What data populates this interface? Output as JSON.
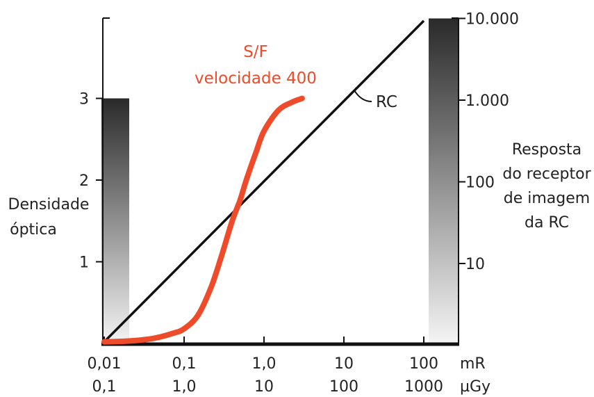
{
  "chart_data": {
    "type": "line",
    "title": "",
    "x_axis": {
      "scale": "log",
      "range_mR": [
        0.01,
        200
      ],
      "ticks_mR": [
        0.01,
        0.1,
        1,
        10,
        100
      ],
      "tick_labels_mR": [
        "0,01",
        "0,1",
        "1,0",
        "10",
        "100"
      ],
      "tick_labels_uGy": [
        "0,1",
        "1,0",
        "10",
        "100",
        "1000"
      ],
      "unit_mR": "mR",
      "unit_uGy": "µGy"
    },
    "y_left": {
      "label_lines": [
        "Densidade",
        "óptica"
      ],
      "range": [
        0,
        4
      ],
      "ticks": [
        1,
        2,
        3
      ],
      "tick_labels": [
        "1",
        "2",
        "3"
      ]
    },
    "y_right": {
      "label_lines": [
        "Resposta",
        "do receptor",
        "de imagem",
        "da RC"
      ],
      "scale": "log",
      "ticks": [
        10,
        100,
        1000,
        10000
      ],
      "tick_labels": [
        "10",
        "100",
        "1.000",
        "10.000"
      ]
    },
    "series": [
      {
        "name": "S/F velocidade 400",
        "label_lines": [
          "S/F",
          "velocidade 400"
        ],
        "color": "#ee4b2b",
        "points": [
          [
            0.01,
            0.02
          ],
          [
            0.02,
            0.03
          ],
          [
            0.04,
            0.06
          ],
          [
            0.07,
            0.12
          ],
          [
            0.1,
            0.18
          ],
          [
            0.15,
            0.35
          ],
          [
            0.22,
            0.7
          ],
          [
            0.3,
            1.1
          ],
          [
            0.4,
            1.5
          ],
          [
            0.5,
            1.75
          ],
          [
            0.6,
            2.0
          ],
          [
            0.8,
            2.35
          ],
          [
            1.0,
            2.6
          ],
          [
            1.5,
            2.85
          ],
          [
            2.2,
            2.95
          ],
          [
            3.0,
            3.0
          ]
        ]
      },
      {
        "name": "RC",
        "label": "RC",
        "color": "#111111",
        "points": [
          [
            0.01,
            0.02
          ],
          [
            100,
            3.95
          ]
        ]
      }
    ],
    "gradient_bars": [
      {
        "side": "left",
        "top_value": 3
      },
      {
        "side": "right",
        "top_value": 10000
      }
    ],
    "legend": "none",
    "grid": false
  }
}
